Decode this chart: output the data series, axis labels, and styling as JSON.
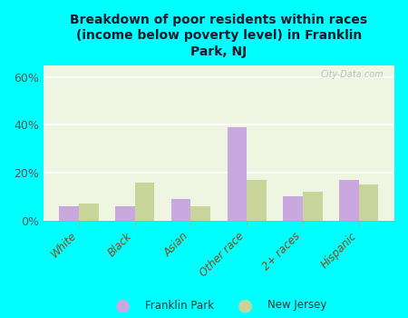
{
  "title": "Breakdown of poor residents within races\n(income below poverty level) in Franklin\nPark, NJ",
  "categories": [
    "White",
    "Black",
    "Asian",
    "Other race",
    "2+ races",
    "Hispanic"
  ],
  "franklin_park": [
    6,
    6,
    9,
    39,
    10,
    17
  ],
  "new_jersey": [
    7,
    16,
    6,
    17,
    12,
    15
  ],
  "fp_color": "#c9a8e0",
  "nj_color": "#c8d49a",
  "bg_outer": "#00ffff",
  "bg_chart": "#eef5e0",
  "title_color": "#1a1a2e",
  "axis_color": "#555555",
  "ylim": [
    0,
    65
  ],
  "yticks": [
    0,
    20,
    40,
    60
  ],
  "ytick_labels": [
    "0%",
    "20%",
    "40%",
    "60%"
  ],
  "watermark": "City-Data.com",
  "bar_width": 0.35
}
